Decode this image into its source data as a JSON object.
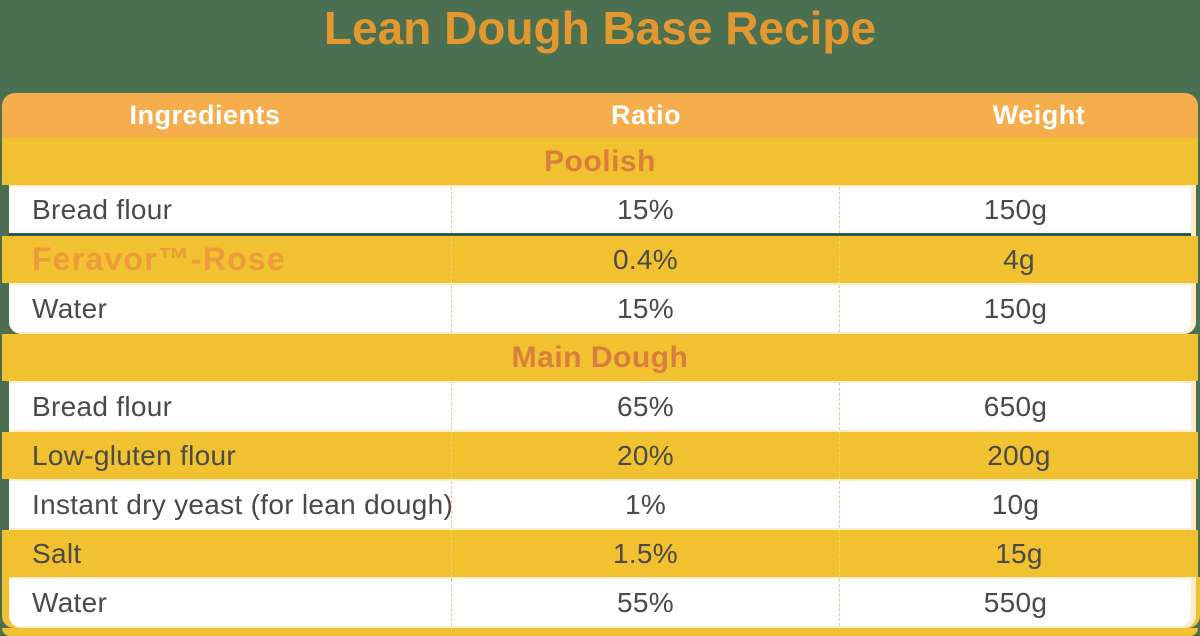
{
  "title": "Lean Dough Base Recipe",
  "chart_data": {
    "type": "table",
    "title": "Lean Dough Base Recipe",
    "columns": [
      "Ingredients",
      "Ratio",
      "Weight"
    ],
    "sections": [
      {
        "header": "Poolish",
        "rows": [
          {
            "ingredient": "Bread flour",
            "ratio": "15%",
            "weight": "150g",
            "divider_below": true
          },
          {
            "ingredient": "Feravor™-Rose",
            "ratio": "0.4%",
            "weight": "4g",
            "emphasis": true
          },
          {
            "ingredient": "Water",
            "ratio": "15%",
            "weight": "150g"
          }
        ]
      },
      {
        "header": "Main Dough",
        "rows": [
          {
            "ingredient": "Bread flour",
            "ratio": "65%",
            "weight": "650g"
          },
          {
            "ingredient": "Low-gluten flour",
            "ratio": "20%",
            "weight": "200g"
          },
          {
            "ingredient": "Instant dry yeast (for lean dough)",
            "ratio": "1%",
            "weight": "10g"
          },
          {
            "ingredient": "Salt",
            "ratio": "1.5%",
            "weight": "15g"
          },
          {
            "ingredient": "Water",
            "ratio": "55%",
            "weight": "550g"
          }
        ]
      }
    ]
  },
  "colors": {
    "page_background": "#4A7051",
    "table_yellow": "#F1C12F",
    "header_orange": "#F6AE4C",
    "title_orange": "#E3982F",
    "section_label_orange": "#D97E3E",
    "emphasis_orange": "#EC9C3A",
    "divider_green": "#2D5A4E",
    "body_text": "#4A4A4A",
    "header_text": "#FFFFFF",
    "cream": "#F8EECC",
    "dash_on_white": "#EDC68F",
    "dash_on_yellow": "#F3D363"
  }
}
